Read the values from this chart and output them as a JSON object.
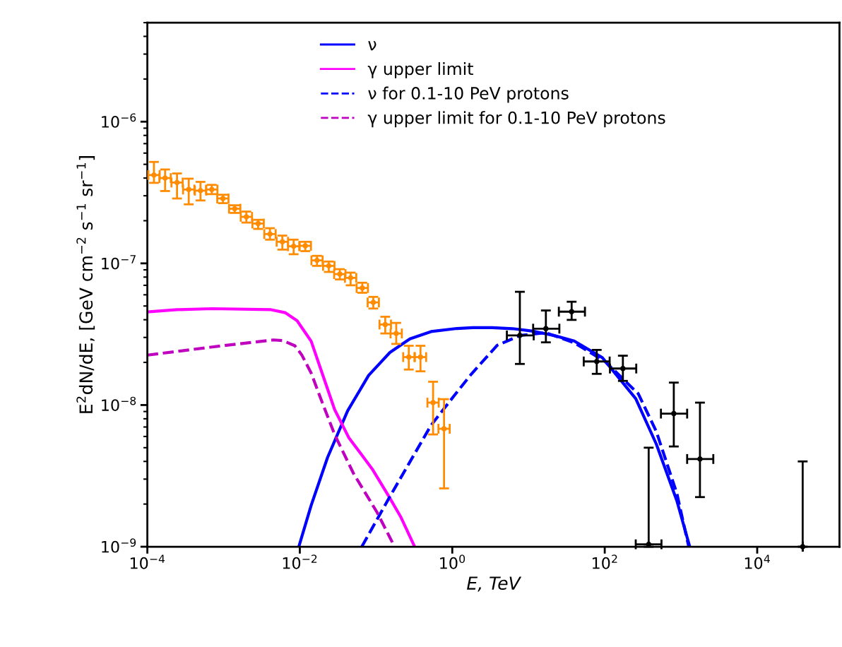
{
  "chart_data": {
    "type": "line",
    "xlabel": "E, TeV",
    "ylabel": "E$^{2}$dN/dE, [GeV cm$^{−2}$ s$^{−1}$ sr$^{−1}$]",
    "log": "xy",
    "xlim": [
      0.0001,
      120000
    ],
    "ylim": [
      1e-09,
      5e-06
    ],
    "xticks": [
      {
        "value": 0.0001,
        "label": "10$^{−4}$"
      },
      {
        "value": 0.01,
        "label": "10$^{−2}$"
      },
      {
        "value": 1,
        "label": "10$^{0}$"
      },
      {
        "value": 100,
        "label": "10$^{2}$"
      },
      {
        "value": 10000,
        "label": "10$^{4}$"
      }
    ],
    "yticks": [
      {
        "value": 1e-09,
        "label": "10$^{−9}$"
      },
      {
        "value": 1e-08,
        "label": "10$^{−8}$"
      },
      {
        "value": 1e-07,
        "label": "10$^{−7}$"
      },
      {
        "value": 1e-06,
        "label": "10$^{−6}$"
      }
    ],
    "grid": false,
    "legend": "top",
    "series": [
      {
        "name": "ν",
        "color": "#0000ff",
        "line_style": "solid",
        "marker": "none",
        "x": [
          0.0097,
          0.0141,
          0.0231,
          0.0424,
          0.08,
          0.152,
          0.278,
          0.527,
          1.15,
          1.86,
          3.33,
          6.2,
          11.5,
          21.4,
          39.7,
          93,
          255,
          475,
          883,
          1303
        ],
        "values": [
          1e-09,
          1.96e-09,
          4.26e-09,
          9.1e-09,
          1.62e-08,
          2.35e-08,
          2.93e-08,
          3.3e-08,
          3.47e-08,
          3.52e-08,
          3.52e-08,
          3.46e-08,
          3.32e-08,
          3.1e-08,
          2.83e-08,
          2.16e-08,
          1.11e-08,
          5.3e-09,
          2.11e-09,
          1e-09
        ]
      },
      {
        "name": "γ upper limit",
        "color": "#ff00ff",
        "line_style": "solid",
        "marker": "none",
        "x": [
          0.0001,
          0.000245,
          0.00071,
          0.0042,
          0.0064,
          0.0092,
          0.0122,
          0.0141,
          0.0187,
          0.0286,
          0.0438,
          0.089,
          0.147,
          0.21,
          0.321
        ],
        "values": [
          4.54e-08,
          4.71e-08,
          4.79e-08,
          4.71e-08,
          4.49e-08,
          3.94e-08,
          3.16e-08,
          2.82e-08,
          1.81e-08,
          9.3e-09,
          5.9e-09,
          3.54e-09,
          2.27e-09,
          1.63e-09,
          1e-09
        ]
      },
      {
        "name": "ν for 0.1-10 PeV protons",
        "color": "#0000ff",
        "line_style": "dashed",
        "marker": "none",
        "x": [
          0.065,
          0.147,
          0.527,
          1.04,
          1.79,
          3.88,
          7.8,
          16.9,
          39.7,
          101,
          276,
          475,
          883,
          1265
        ],
        "values": [
          1e-09,
          2.19e-09,
          7.2e-09,
          1.15e-08,
          1.66e-08,
          2.64e-08,
          3.1e-08,
          3.24e-08,
          2.75e-08,
          2.03e-08,
          1.2e-08,
          6.5e-09,
          2.38e-09,
          1e-09
        ]
      },
      {
        "name": "γ upper limit for 0.1-10 PeV protons",
        "color": "#bf00bf",
        "line_style": "dashed",
        "marker": "none",
        "x": [
          0.0001,
          0.00071,
          0.0045,
          0.006,
          0.0086,
          0.0106,
          0.0141,
          0.0187,
          0.0286,
          0.0506,
          0.103,
          0.175
        ],
        "values": [
          2.25e-08,
          2.57e-08,
          2.88e-08,
          2.85e-08,
          2.62e-08,
          2.26e-08,
          1.68e-08,
          1.12e-08,
          6.2e-09,
          3.29e-09,
          1.75e-09,
          1e-09
        ]
      },
      {
        "type": "scatter",
        "color": "#ff8c00",
        "x": [
          0.000122,
          0.000171,
          0.000245,
          0.000349,
          0.000498,
          0.0007,
          0.00098,
          0.0014,
          0.00199,
          0.00284,
          0.00406,
          0.0059,
          0.0083,
          0.0118,
          0.0168,
          0.024,
          0.0335,
          0.0464,
          0.066,
          0.092,
          0.132,
          0.184,
          0.269,
          0.383,
          0.56,
          0.78
        ],
        "values": [
          4.2e-07,
          4e-07,
          3.72e-07,
          3.32e-07,
          3.26e-07,
          3.32e-07,
          2.87e-07,
          2.43e-07,
          2.13e-07,
          1.91e-07,
          1.61e-07,
          1.42e-07,
          1.32e-07,
          1.33e-07,
          1.05e-07,
          9.6e-08,
          8.4e-08,
          7.9e-08,
          6.7e-08,
          5.3e-08,
          3.7e-08,
          3.2e-08,
          2.18e-08,
          2.18e-08,
          1.04e-08,
          6.8e-09
        ],
        "errors": [
          [
            3.7e-07,
            5.2e-07
          ],
          [
            3.24e-07,
            4.6e-07
          ],
          [
            2.87e-07,
            4.31e-07
          ],
          [
            2.61e-07,
            3.96e-07
          ],
          [
            2.78e-07,
            3.76e-07
          ],
          [
            3.08e-07,
            3.58e-07
          ],
          [
            2.66e-07,
            3.05e-07
          ],
          [
            2.27e-07,
            2.57e-07
          ],
          [
            1.94e-07,
            2.32e-07
          ],
          [
            1.75e-07,
            2.03e-07
          ],
          [
            1.47e-07,
            1.77e-07
          ],
          [
            1.25e-07,
            1.57e-07
          ],
          [
            1.16e-07,
            1.47e-07
          ],
          [
            1.22e-07,
            1.42e-07
          ],
          [
            9.6e-08,
            1.13e-07
          ],
          [
            8.7e-08,
            1.03e-07
          ],
          [
            7.7e-08,
            9.1e-08
          ],
          [
            7e-08,
            8.6e-08
          ],
          [
            6.2e-08,
            7.3e-08
          ],
          [
            4.8e-08,
            5.8e-08
          ],
          [
            3.2e-08,
            4.2e-08
          ],
          [
            2.7e-08,
            3.8e-08
          ],
          [
            1.78e-08,
            2.62e-08
          ],
          [
            1.73e-08,
            2.62e-08
          ],
          [
            6.2e-09,
            1.46e-08
          ],
          [
            2.58e-09,
            1.1e-08
          ]
        ],
        "xerrors": [
          [
            0.000103,
            0.000145
          ],
          [
            0.000144,
            0.000203
          ],
          [
            0.000207,
            0.000291
          ],
          [
            0.000294,
            0.000414
          ],
          [
            0.00042,
            0.000591
          ],
          [
            0.00059,
            0.00083
          ],
          [
            0.000826,
            0.00116
          ],
          [
            0.00118,
            0.00166
          ],
          [
            0.00168,
            0.00236
          ],
          [
            0.00239,
            0.00337
          ],
          [
            0.00342,
            0.00482
          ],
          [
            0.00497,
            0.007
          ],
          [
            0.007,
            0.00984
          ],
          [
            0.00995,
            0.014
          ],
          [
            0.0142,
            0.0199
          ],
          [
            0.0202,
            0.0285
          ],
          [
            0.0282,
            0.0397
          ],
          [
            0.0391,
            0.055
          ],
          [
            0.0556,
            0.0783
          ],
          [
            0.0776,
            0.109
          ],
          [
            0.111,
            0.157
          ],
          [
            0.155,
            0.218
          ],
          [
            0.227,
            0.319
          ],
          [
            0.323,
            0.454
          ],
          [
            0.472,
            0.664
          ],
          [
            0.658,
            0.925
          ]
        ]
      },
      {
        "type": "scatter",
        "color": "#000000",
        "x": [
          7.7,
          16.9,
          36.8,
          78.5,
          173,
          805,
          1774,
          377,
          39500
        ],
        "values": [
          3.1e-08,
          3.46e-08,
          4.56e-08,
          2.03e-08,
          1.81e-08,
          8.7e-09,
          4.16e-09,
          1.04e-09,
          1e-09
        ],
        "errors": [
          [
            1.95e-08,
            6.3e-08
          ],
          [
            2.77e-08,
            4.65e-08
          ],
          [
            3.99e-08,
            5.36e-08
          ],
          [
            1.66e-08,
            2.45e-08
          ],
          [
            1.48e-08,
            2.23e-08
          ],
          [
            5.1e-09,
            1.44e-08
          ],
          [
            2.24e-09,
            1.04e-08
          ],
          [
            1e-09,
            5e-09
          ],
          [
            1e-09,
            4e-09
          ]
        ],
        "xerrors": [
          [
            5.2,
            11.7
          ],
          [
            11.5,
            25.4
          ],
          [
            25,
            55
          ],
          [
            53,
            116
          ],
          [
            117,
            259
          ],
          [
            546,
            1205
          ],
          [
            1205,
            2655
          ],
          [
            255,
            555
          ],
          null
        ]
      }
    ]
  }
}
